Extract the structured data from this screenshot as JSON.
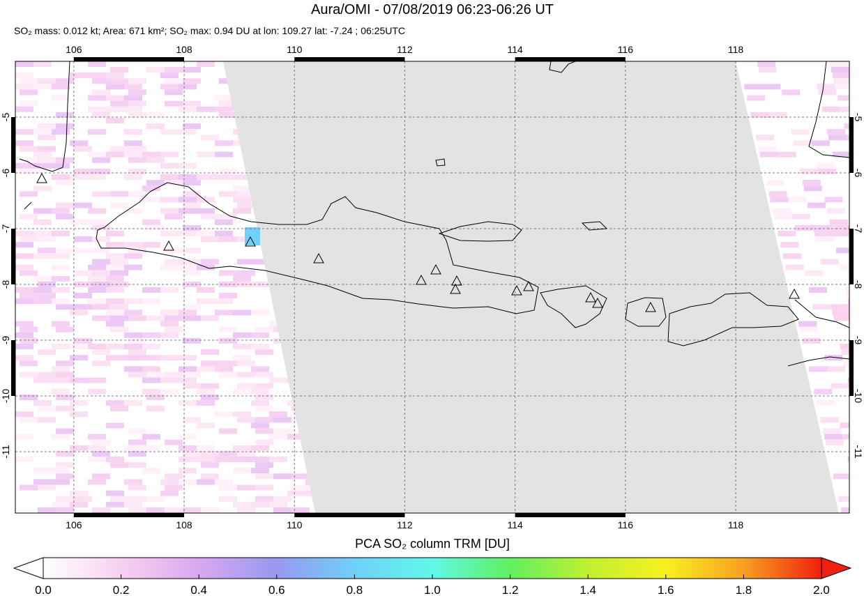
{
  "chart_data": {
    "type": "map",
    "title": "Aura/OMI - 07/08/2019 06:23-06:26 UT",
    "subtitle": "SO₂ mass: 0.012 kt; Area: 671 km²; SO₂ max: 0.94 DU at lon: 109.27 lat: -7.24 ; 06:25UTC",
    "xlim": [
      104.94,
      120.06
    ],
    "ylim": [
      -12.1,
      -4.0
    ],
    "xticks": [
      106,
      108,
      110,
      112,
      114,
      116,
      118
    ],
    "yticks": [
      -5,
      -6,
      -7,
      -8,
      -9,
      -10,
      -11
    ],
    "grid": true,
    "colorbar": {
      "label": "PCA SO₂ column TRM [DU]",
      "lim": [
        0,
        2
      ],
      "ticks": [
        {
          "value": 0,
          "label": "0.0"
        },
        {
          "value": 0.2,
          "label": "0.2"
        },
        {
          "value": 0.4,
          "label": "0.4"
        },
        {
          "value": 0.6,
          "label": "0.6"
        },
        {
          "value": 0.8,
          "label": "0.8"
        },
        {
          "value": 1,
          "label": "1.0"
        },
        {
          "value": 1.2,
          "label": "1.2"
        },
        {
          "value": 1.4,
          "label": "1.4"
        },
        {
          "value": 1.6,
          "label": "1.6"
        },
        {
          "value": 1.8,
          "label": "1.8"
        },
        {
          "value": 2,
          "label": "2.0"
        }
      ],
      "colors": [
        "#ffffff",
        "#f8d0f0",
        "#d8a8f0",
        "#9898f0",
        "#70d0f8",
        "#60f8e8",
        "#60f060",
        "#c0f030",
        "#f8f020",
        "#f8a020",
        "#f02010"
      ]
    }
  }
}
